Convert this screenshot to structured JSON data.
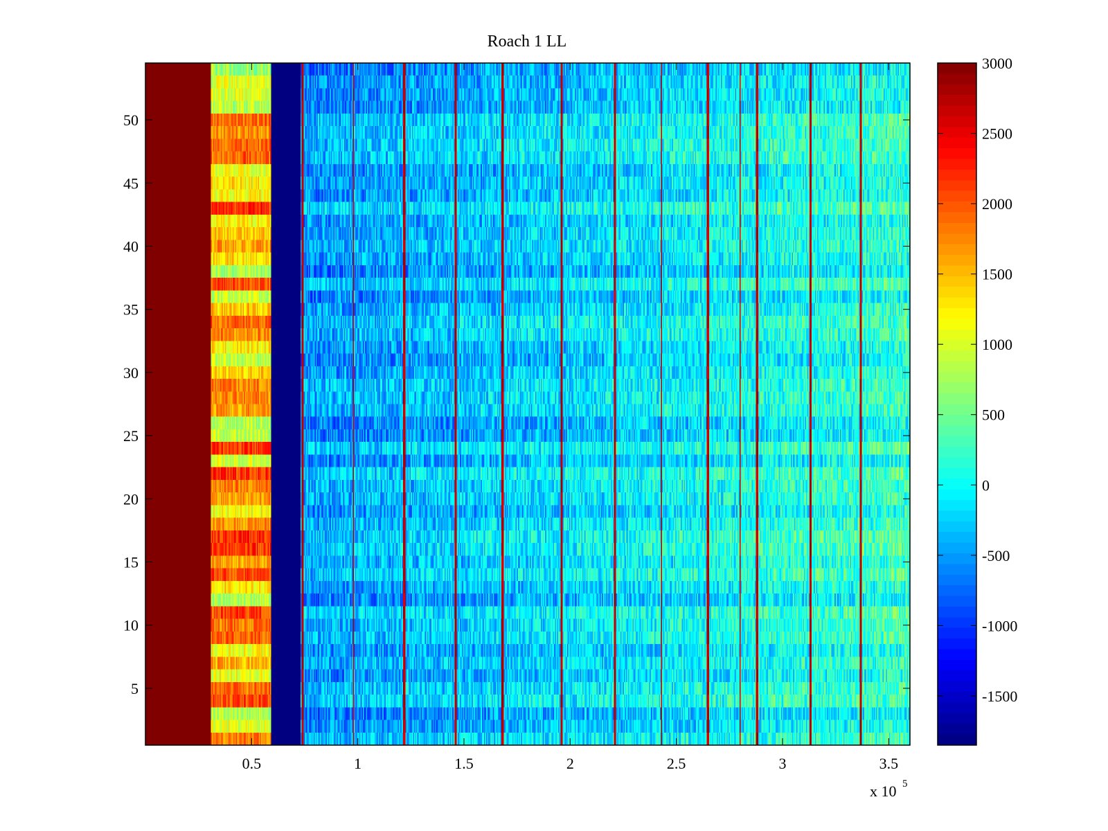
{
  "chart_data": {
    "type": "heatmap",
    "title": "Roach 1 LL",
    "xlabel": "",
    "ylabel": "",
    "x_exponent_label": "x 10",
    "x_exponent_power": "5",
    "xlim": [
      0,
      3.6
    ],
    "ylim": [
      0.5,
      54.5
    ],
    "x_ticks": [
      0.5,
      1,
      1.5,
      2,
      2.5,
      3,
      3.5
    ],
    "x_tick_labels": [
      "0.5",
      "1",
      "1.5",
      "2",
      "2.5",
      "3",
      "3.5"
    ],
    "y_ticks": [
      5,
      10,
      15,
      20,
      25,
      30,
      35,
      40,
      45,
      50
    ],
    "y_tick_labels": [
      "5",
      "10",
      "15",
      "20",
      "25",
      "30",
      "35",
      "40",
      "45",
      "50"
    ],
    "colorbar": {
      "colormap": "jet",
      "clim": [
        -1850,
        3000
      ],
      "ticks": [
        3000,
        2500,
        2000,
        1500,
        1000,
        500,
        0,
        -500,
        -1000,
        -1500
      ],
      "tick_labels": [
        "3000",
        "2500",
        "2000",
        "1500",
        "1000",
        "500",
        "0",
        "-500",
        "-1000",
        "-1500"
      ]
    },
    "rows": 54,
    "regions": [
      {
        "x_range": [
          0,
          0.31
        ],
        "approx_value": 3000,
        "description_value": "saturated"
      },
      {
        "x_range": [
          0.31,
          0.59
        ],
        "approx_value": 1500
      },
      {
        "x_range": [
          0.59,
          0.73
        ],
        "approx_value": -1850
      },
      {
        "x_range": [
          0.73,
          2.4
        ],
        "approx_value": -350
      },
      {
        "x_range": [
          2.4,
          3.6
        ],
        "approx_value": 100
      }
    ],
    "spike_columns_x": [
      0.51,
      0.74,
      0.98,
      1.22,
      1.46,
      1.68,
      1.96,
      2.21,
      2.43,
      2.65,
      2.8,
      2.88,
      3.13,
      3.37
    ],
    "spike_value": 2700
  }
}
